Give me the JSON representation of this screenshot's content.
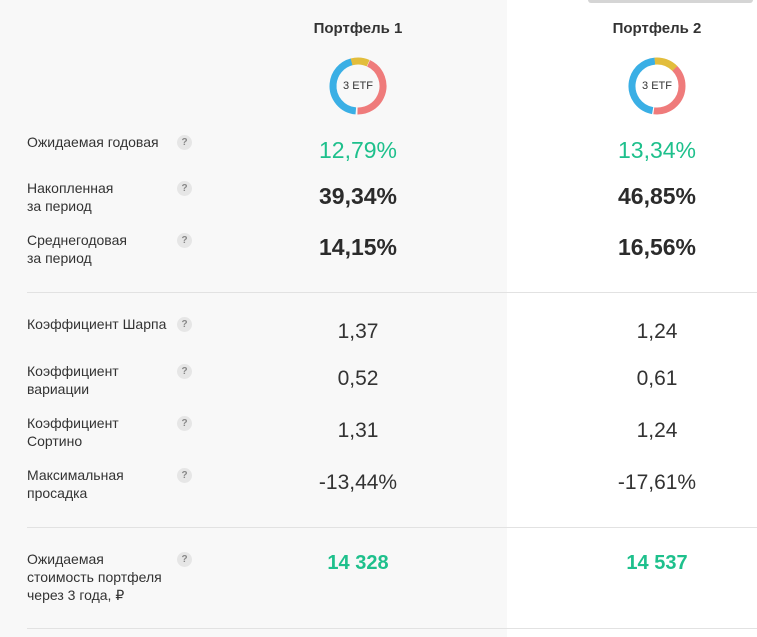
{
  "columns": [
    {
      "title": "Портфель 1",
      "ring_label": "3 ETF"
    },
    {
      "title": "Портфель 2",
      "ring_label": "3 ETF"
    }
  ],
  "ring_colors": {
    "blue": "#3aafe5",
    "red": "#ef7b7b",
    "yellow": "#e2bd3c"
  },
  "metrics": {
    "expected_annual": {
      "label": "Ожидаемая годовая",
      "v1": "12,79%",
      "v2": "13,34%"
    },
    "accumulated": {
      "label_line1": "Накопленная",
      "label_line2": "за период",
      "v1": "39,34%",
      "v2": "46,85%"
    },
    "avg_annual": {
      "label_line1": "Среднегодовая",
      "label_line2": "за период",
      "v1": "14,15%",
      "v2": "16,56%"
    },
    "sharpe": {
      "label": "Коэффициент Шарпа",
      "v1": "1,37",
      "v2": "1,24"
    },
    "variation": {
      "label_line1": "Коэффициент",
      "label_line2": "вариации",
      "v1": "0,52",
      "v2": "0,61"
    },
    "sortino": {
      "label_line1": "Коэффициент",
      "label_line2": "Сортино",
      "v1": "1,31",
      "v2": "1,24"
    },
    "drawdown": {
      "label_line1": "Максимальная",
      "label_line2": "просадка",
      "v1": "-13,44%",
      "v2": "-17,61%"
    },
    "expected_value": {
      "label_line1": "Ожидаемая",
      "label_line2": "стоимость портфеля",
      "label_line3": "через 3 года, ₽",
      "v1": "14 328",
      "v2": "14 537"
    }
  },
  "help_glyph": "?"
}
